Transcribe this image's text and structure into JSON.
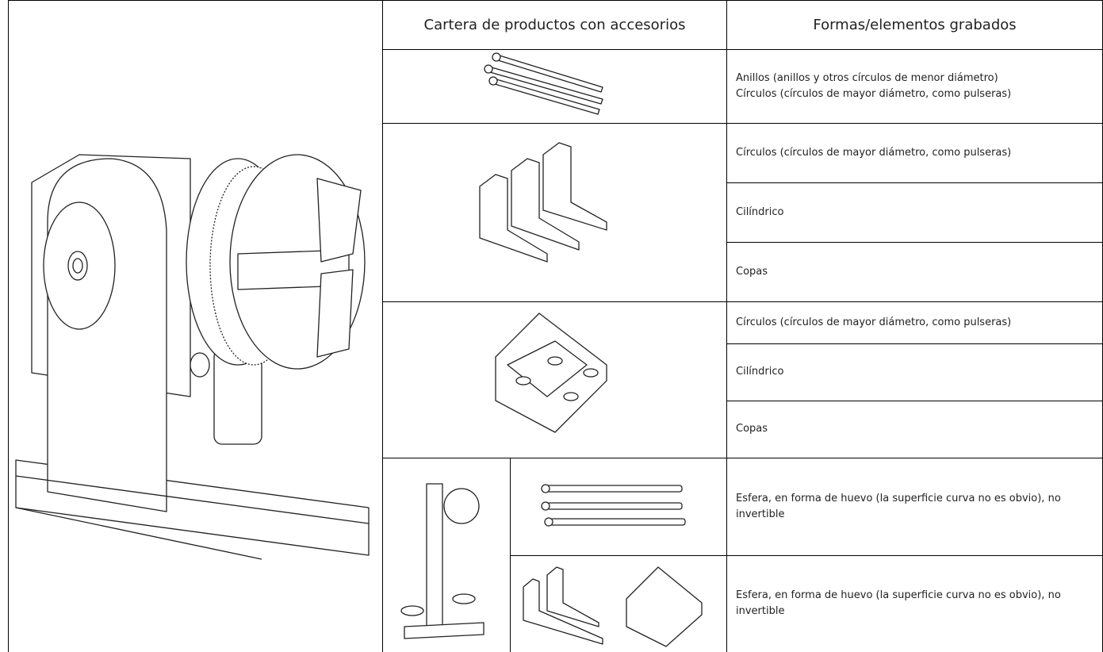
{
  "table": {
    "header": [
      "Cartera de productos con accesorios",
      "Formas/elementos grabados"
    ],
    "rows": [
      {
        "cells": [
          [
            "Anillos (anillos y otros círculos de menor diámetro)",
            "Círculos (círculos de mayor diámetro, como pulseras)"
          ]
        ]
      },
      {
        "cells": [
          [
            "Círculos (círculos de mayor diámetro, como pulseras)"
          ],
          [
            "Cilíndrico"
          ],
          [
            "Copas"
          ]
        ]
      },
      {
        "cells": [
          [
            "Círculos (círculos de mayor diámetro, como pulseras)"
          ],
          [
            "Cilíndrico"
          ],
          [
            "Copas"
          ]
        ]
      },
      {
        "cells": [
          [
            "Esfera, en forma de huevo (la superficie curva no es obvio), no invertible"
          ],
          [
            "Esfera, en forma de huevo (la superficie curva no es obvio), no invertible"
          ]
        ]
      }
    ]
  }
}
